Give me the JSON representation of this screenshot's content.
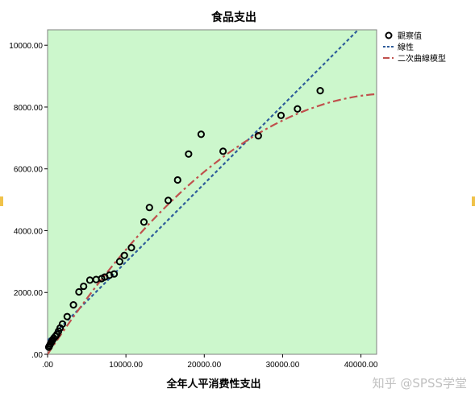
{
  "chart_data": {
    "type": "scatter",
    "title": "食品支出",
    "xlabel": "全年人平消费性支出",
    "ylabel": "",
    "xlim": [
      0,
      42000
    ],
    "ylim": [
      0,
      10500
    ],
    "x_ticks": [
      ".00",
      "10000.00",
      "20000.00",
      "30000.00",
      "40000.00"
    ],
    "x_tick_values": [
      0,
      10000,
      20000,
      30000,
      40000
    ],
    "y_ticks": [
      ".00",
      "2000.00",
      "4000.00",
      "6000.00",
      "8000.00",
      "10000.00"
    ],
    "y_tick_values": [
      0,
      2000,
      4000,
      6000,
      8000,
      10000
    ],
    "plot_background": "#ccf7cc",
    "legend": {
      "position": "right",
      "observed": "觀察值",
      "linear": "線性",
      "quadratic": "二次曲線模型"
    },
    "observed": {
      "color": "#000000",
      "points": [
        [
          150,
          230
        ],
        [
          250,
          280
        ],
        [
          350,
          330
        ],
        [
          450,
          380
        ],
        [
          550,
          420
        ],
        [
          650,
          470
        ],
        [
          800,
          520
        ],
        [
          1000,
          580
        ],
        [
          1200,
          650
        ],
        [
          1400,
          750
        ],
        [
          1600,
          850
        ],
        [
          1900,
          980
        ],
        [
          2500,
          1220
        ],
        [
          3300,
          1600
        ],
        [
          4000,
          2020
        ],
        [
          4600,
          2200
        ],
        [
          5400,
          2400
        ],
        [
          6200,
          2420
        ],
        [
          6900,
          2450
        ],
        [
          7300,
          2500
        ],
        [
          7900,
          2560
        ],
        [
          8500,
          2600
        ],
        [
          9200,
          3000
        ],
        [
          9800,
          3200
        ],
        [
          10700,
          3450
        ],
        [
          12300,
          4280
        ],
        [
          13000,
          4750
        ],
        [
          15400,
          4980
        ],
        [
          16600,
          5640
        ],
        [
          18000,
          6480
        ],
        [
          19600,
          7120
        ],
        [
          22400,
          6570
        ],
        [
          26900,
          7070
        ],
        [
          29800,
          7730
        ],
        [
          31900,
          7940
        ],
        [
          34800,
          8530
        ]
      ]
    },
    "linear_fit": {
      "color": "#2e5c9a",
      "intercept": 450,
      "slope": 0.2535
    },
    "quadratic_fit": {
      "color": "#c0504d",
      "a": -4.31e-06,
      "b": 0.3815,
      "c": 0,
      "x_range": [
        0,
        42000
      ]
    }
  },
  "watermark": "知乎 @SPSS学堂"
}
